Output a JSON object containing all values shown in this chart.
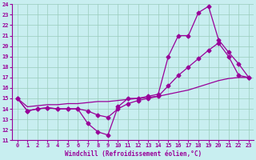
{
  "xlabel": "Windchill (Refroidissement éolien,°C)",
  "xlim": [
    -0.5,
    23.5
  ],
  "ylim": [
    11,
    24
  ],
  "yticks": [
    11,
    12,
    13,
    14,
    15,
    16,
    17,
    18,
    19,
    20,
    21,
    22,
    23,
    24
  ],
  "xticks": [
    0,
    1,
    2,
    3,
    4,
    5,
    6,
    7,
    8,
    9,
    10,
    11,
    12,
    13,
    14,
    15,
    16,
    17,
    18,
    19,
    20,
    21,
    22,
    23
  ],
  "background_color": "#c8eef0",
  "grid_color": "#99ccbb",
  "line_color": "#990099",
  "line1_x": [
    0,
    1,
    2,
    3,
    4,
    5,
    6,
    7,
    8,
    9,
    10,
    11,
    12,
    13,
    14,
    15,
    16,
    17,
    18,
    19,
    20,
    21,
    22,
    23
  ],
  "line1_y": [
    15.0,
    13.8,
    14.0,
    14.1,
    14.0,
    14.0,
    14.0,
    12.6,
    11.8,
    11.5,
    14.2,
    15.0,
    15.0,
    15.2,
    15.4,
    19.0,
    21.0,
    21.0,
    23.2,
    23.8,
    20.6,
    19.4,
    18.3,
    17.0
  ],
  "line2_x": [
    0,
    1,
    2,
    3,
    4,
    5,
    6,
    7,
    8,
    9,
    10,
    11,
    12,
    13,
    14,
    15,
    16,
    17,
    18,
    19,
    20,
    21,
    22,
    23
  ],
  "line2_y": [
    15.0,
    13.8,
    14.0,
    14.1,
    14.0,
    14.0,
    14.0,
    13.8,
    13.4,
    13.2,
    14.0,
    14.5,
    14.8,
    15.0,
    15.2,
    16.2,
    17.2,
    18.0,
    18.8,
    19.6,
    20.3,
    19.0,
    17.2,
    17.0
  ],
  "line3_x": [
    0,
    1,
    2,
    3,
    4,
    5,
    6,
    7,
    8,
    9,
    10,
    11,
    12,
    13,
    14,
    15,
    16,
    17,
    18,
    19,
    20,
    21,
    22,
    23
  ],
  "line3_y": [
    15.0,
    14.2,
    14.3,
    14.4,
    14.4,
    14.5,
    14.5,
    14.6,
    14.7,
    14.7,
    14.8,
    14.9,
    15.0,
    15.1,
    15.2,
    15.4,
    15.6,
    15.8,
    16.1,
    16.4,
    16.7,
    16.9,
    17.0,
    17.0
  ],
  "marker_size": 2.5,
  "linewidth": 0.9,
  "tick_fontsize": 5.0,
  "xlabel_fontsize": 5.5
}
